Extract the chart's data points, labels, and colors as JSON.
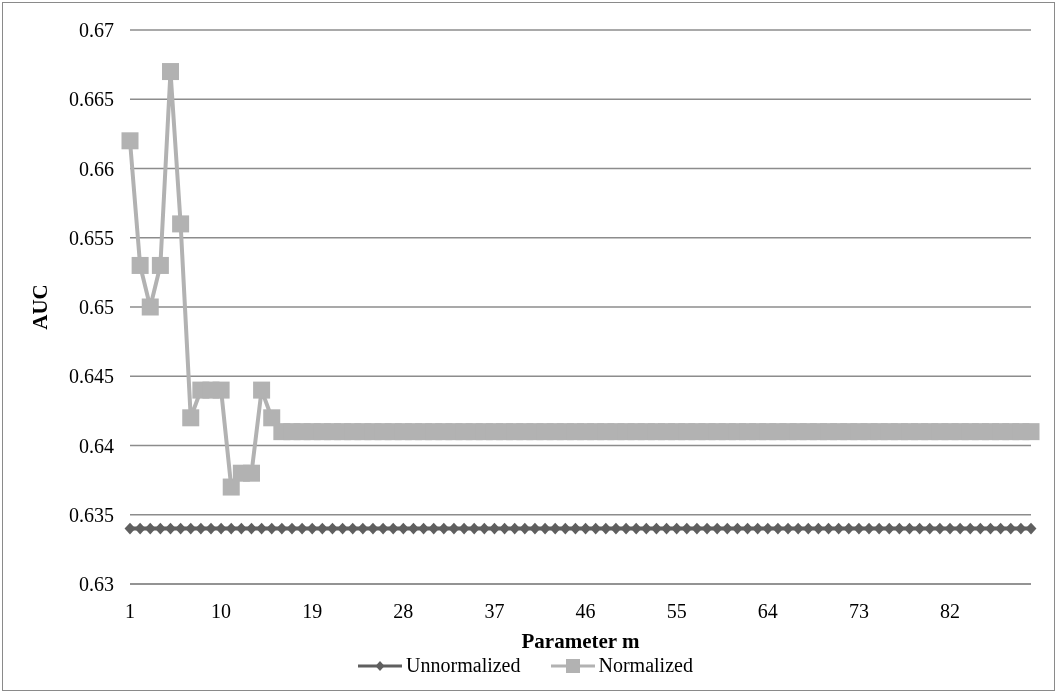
{
  "chart_data": {
    "type": "line",
    "xlabel": "Parameter m",
    "ylabel": "AUC",
    "categories": [
      "1",
      null,
      null,
      null,
      null,
      null,
      null,
      null,
      null,
      "10",
      null,
      null,
      null,
      null,
      null,
      null,
      null,
      null,
      "19",
      null,
      null,
      null,
      null,
      null,
      null,
      null,
      null,
      "28",
      null,
      null,
      null,
      null,
      null,
      null,
      null,
      null,
      "37",
      null,
      null,
      null,
      null,
      null,
      null,
      null,
      null,
      "46",
      null,
      null,
      null,
      null,
      null,
      null,
      null,
      null,
      "55",
      null,
      null,
      null,
      null,
      null,
      null,
      null,
      null,
      "64",
      null,
      null,
      null,
      null,
      null,
      null,
      null,
      null,
      "73",
      null,
      null,
      null,
      null,
      null,
      null,
      null,
      null,
      "82",
      null,
      null,
      null,
      null,
      null,
      null,
      null,
      null
    ],
    "series": [
      {
        "name": "Unnormalized",
        "color": "#5f5f5f",
        "marker": "diamond",
        "values": [
          0.634,
          0.634,
          0.634,
          0.634,
          0.634,
          0.634,
          0.634,
          0.634,
          0.634,
          0.634,
          0.634,
          0.634,
          0.634,
          0.634,
          0.634,
          0.634,
          0.634,
          0.634,
          0.634,
          0.634,
          0.634,
          0.634,
          0.634,
          0.634,
          0.634,
          0.634,
          0.634,
          0.634,
          0.634,
          0.634,
          0.634,
          0.634,
          0.634,
          0.634,
          0.634,
          0.634,
          0.634,
          0.634,
          0.634,
          0.634,
          0.634,
          0.634,
          0.634,
          0.634,
          0.634,
          0.634,
          0.634,
          0.634,
          0.634,
          0.634,
          0.634,
          0.634,
          0.634,
          0.634,
          0.634,
          0.634,
          0.634,
          0.634,
          0.634,
          0.634,
          0.634,
          0.634,
          0.634,
          0.634,
          0.634,
          0.634,
          0.634,
          0.634,
          0.634,
          0.634,
          0.634,
          0.634,
          0.634,
          0.634,
          0.634,
          0.634,
          0.634,
          0.634,
          0.634,
          0.634,
          0.634,
          0.634,
          0.634,
          0.634,
          0.634,
          0.634,
          0.634,
          0.634,
          0.634,
          0.634
        ]
      },
      {
        "name": "Normalized",
        "color": "#b2b2b2",
        "marker": "square",
        "values": [
          0.662,
          0.653,
          0.65,
          0.653,
          0.667,
          0.656,
          0.642,
          0.644,
          0.644,
          0.644,
          0.637,
          0.638,
          0.638,
          0.644,
          0.642,
          0.641,
          0.641,
          0.641,
          0.641,
          0.641,
          0.641,
          0.641,
          0.641,
          0.641,
          0.641,
          0.641,
          0.641,
          0.641,
          0.641,
          0.641,
          0.641,
          0.641,
          0.641,
          0.641,
          0.641,
          0.641,
          0.641,
          0.641,
          0.641,
          0.641,
          0.641,
          0.641,
          0.641,
          0.641,
          0.641,
          0.641,
          0.641,
          0.641,
          0.641,
          0.641,
          0.641,
          0.641,
          0.641,
          0.641,
          0.641,
          0.641,
          0.641,
          0.641,
          0.641,
          0.641,
          0.641,
          0.641,
          0.641,
          0.641,
          0.641,
          0.641,
          0.641,
          0.641,
          0.641,
          0.641,
          0.641,
          0.641,
          0.641,
          0.641,
          0.641,
          0.641,
          0.641,
          0.641,
          0.641,
          0.641,
          0.641,
          0.641,
          0.641,
          0.641,
          0.641,
          0.641,
          0.641,
          0.641,
          0.641,
          0.641
        ]
      }
    ],
    "ylim": [
      0.63,
      0.67
    ],
    "yticks": [
      0.63,
      0.635,
      0.64,
      0.645,
      0.65,
      0.655,
      0.66,
      0.665,
      0.67
    ],
    "grid": "y",
    "legend": "bottom"
  }
}
